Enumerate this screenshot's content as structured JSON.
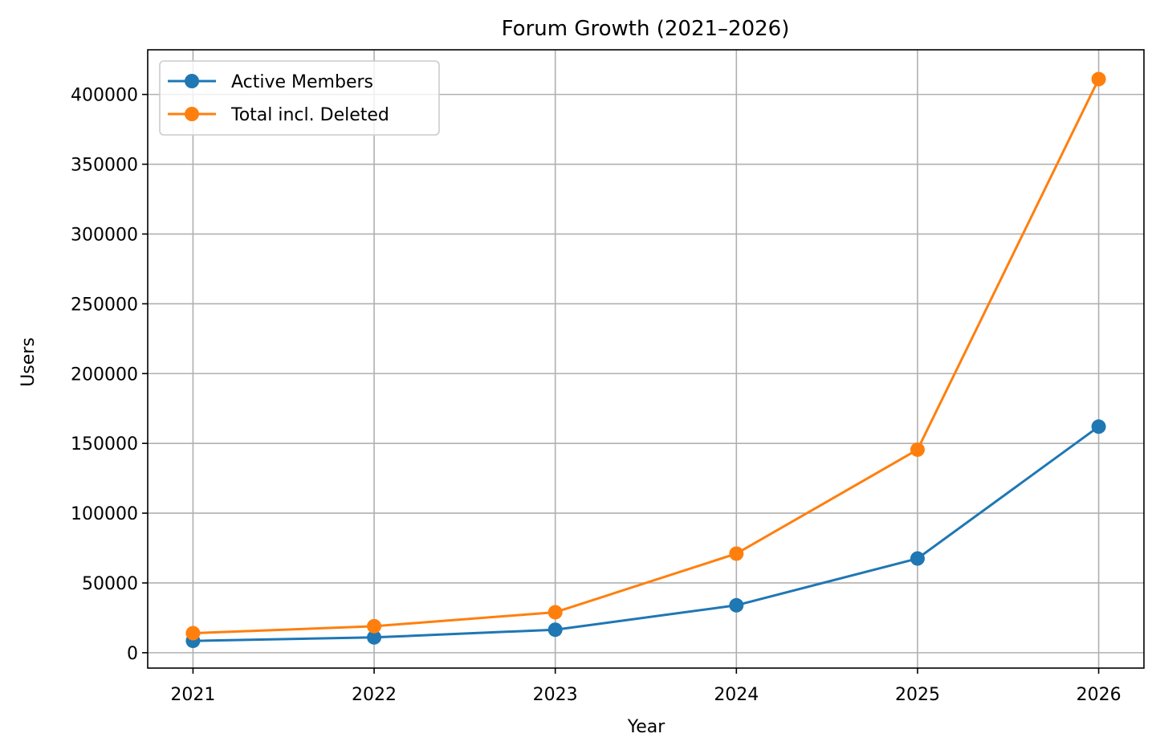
{
  "chart_data": {
    "type": "line",
    "title": "Forum Growth (2021–2026)",
    "xlabel": "Year",
    "ylabel": "Users",
    "x": [
      2021,
      2022,
      2023,
      2024,
      2025,
      2026
    ],
    "x_tick_labels": [
      "2021",
      "2022",
      "2023",
      "2024",
      "2025",
      "2026"
    ],
    "xlim": [
      2020.75,
      2026.25
    ],
    "ylim": [
      -11000,
      432000
    ],
    "y_ticks": [
      0,
      50000,
      100000,
      150000,
      200000,
      250000,
      300000,
      350000,
      400000
    ],
    "y_tick_labels": [
      "0",
      "50000",
      "100000",
      "150000",
      "200000",
      "250000",
      "300000",
      "350000",
      "400000"
    ],
    "grid": true,
    "legend_position": "top-left",
    "series": [
      {
        "name": "Active Members",
        "color": "#1f77b4",
        "marker": "circle",
        "values": [
          8500,
          11000,
          16500,
          34000,
          67500,
          162000
        ]
      },
      {
        "name": "Total incl. Deleted",
        "color": "#ff7f0e",
        "marker": "circle",
        "values": [
          14000,
          19000,
          29000,
          71000,
          145500,
          411000
        ]
      }
    ]
  }
}
